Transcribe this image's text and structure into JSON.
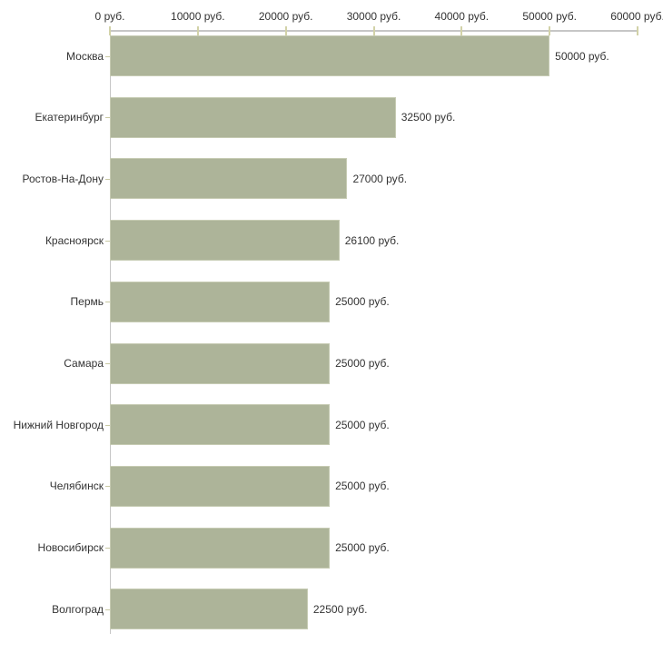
{
  "chart_data": {
    "type": "bar",
    "orientation": "horizontal",
    "title": "",
    "categories": [
      "Москва",
      "Екатеринбург",
      "Ростов-На-Дону",
      "Красноярск",
      "Пермь",
      "Самара",
      "Нижний Новгород",
      "Челябинск",
      "Новосибирск",
      "Волгоград"
    ],
    "values": [
      50000,
      32500,
      27000,
      26100,
      25000,
      25000,
      25000,
      25000,
      25000,
      22500
    ],
    "value_labels": [
      "50000 руб.",
      "32500 руб.",
      "27000 руб.",
      "26100 руб.",
      "25000 руб.",
      "25000 руб.",
      "25000 руб.",
      "25000 руб.",
      "25000 руб.",
      "22500 руб."
    ],
    "x_axis": {
      "position": "top",
      "range": [
        0,
        60000
      ],
      "ticks": [
        0,
        10000,
        20000,
        30000,
        40000,
        50000,
        60000
      ],
      "tick_labels": [
        "0 руб.",
        "10000 руб.",
        "20000 руб.",
        "30000 руб.",
        "40000 руб.",
        "50000 руб.",
        "60000 руб."
      ]
    },
    "ylabel": "",
    "xlabel": "",
    "grid": "off",
    "legend": "none"
  },
  "colors": {
    "background": "#ffffff",
    "bar_fill": "#adb499",
    "bar_border": "#c6cbb3",
    "axis_line": "#c6c6c6",
    "tick_mark": "#d2d2a8",
    "category_dash": "#c9c9a3",
    "text": "#333333"
  }
}
